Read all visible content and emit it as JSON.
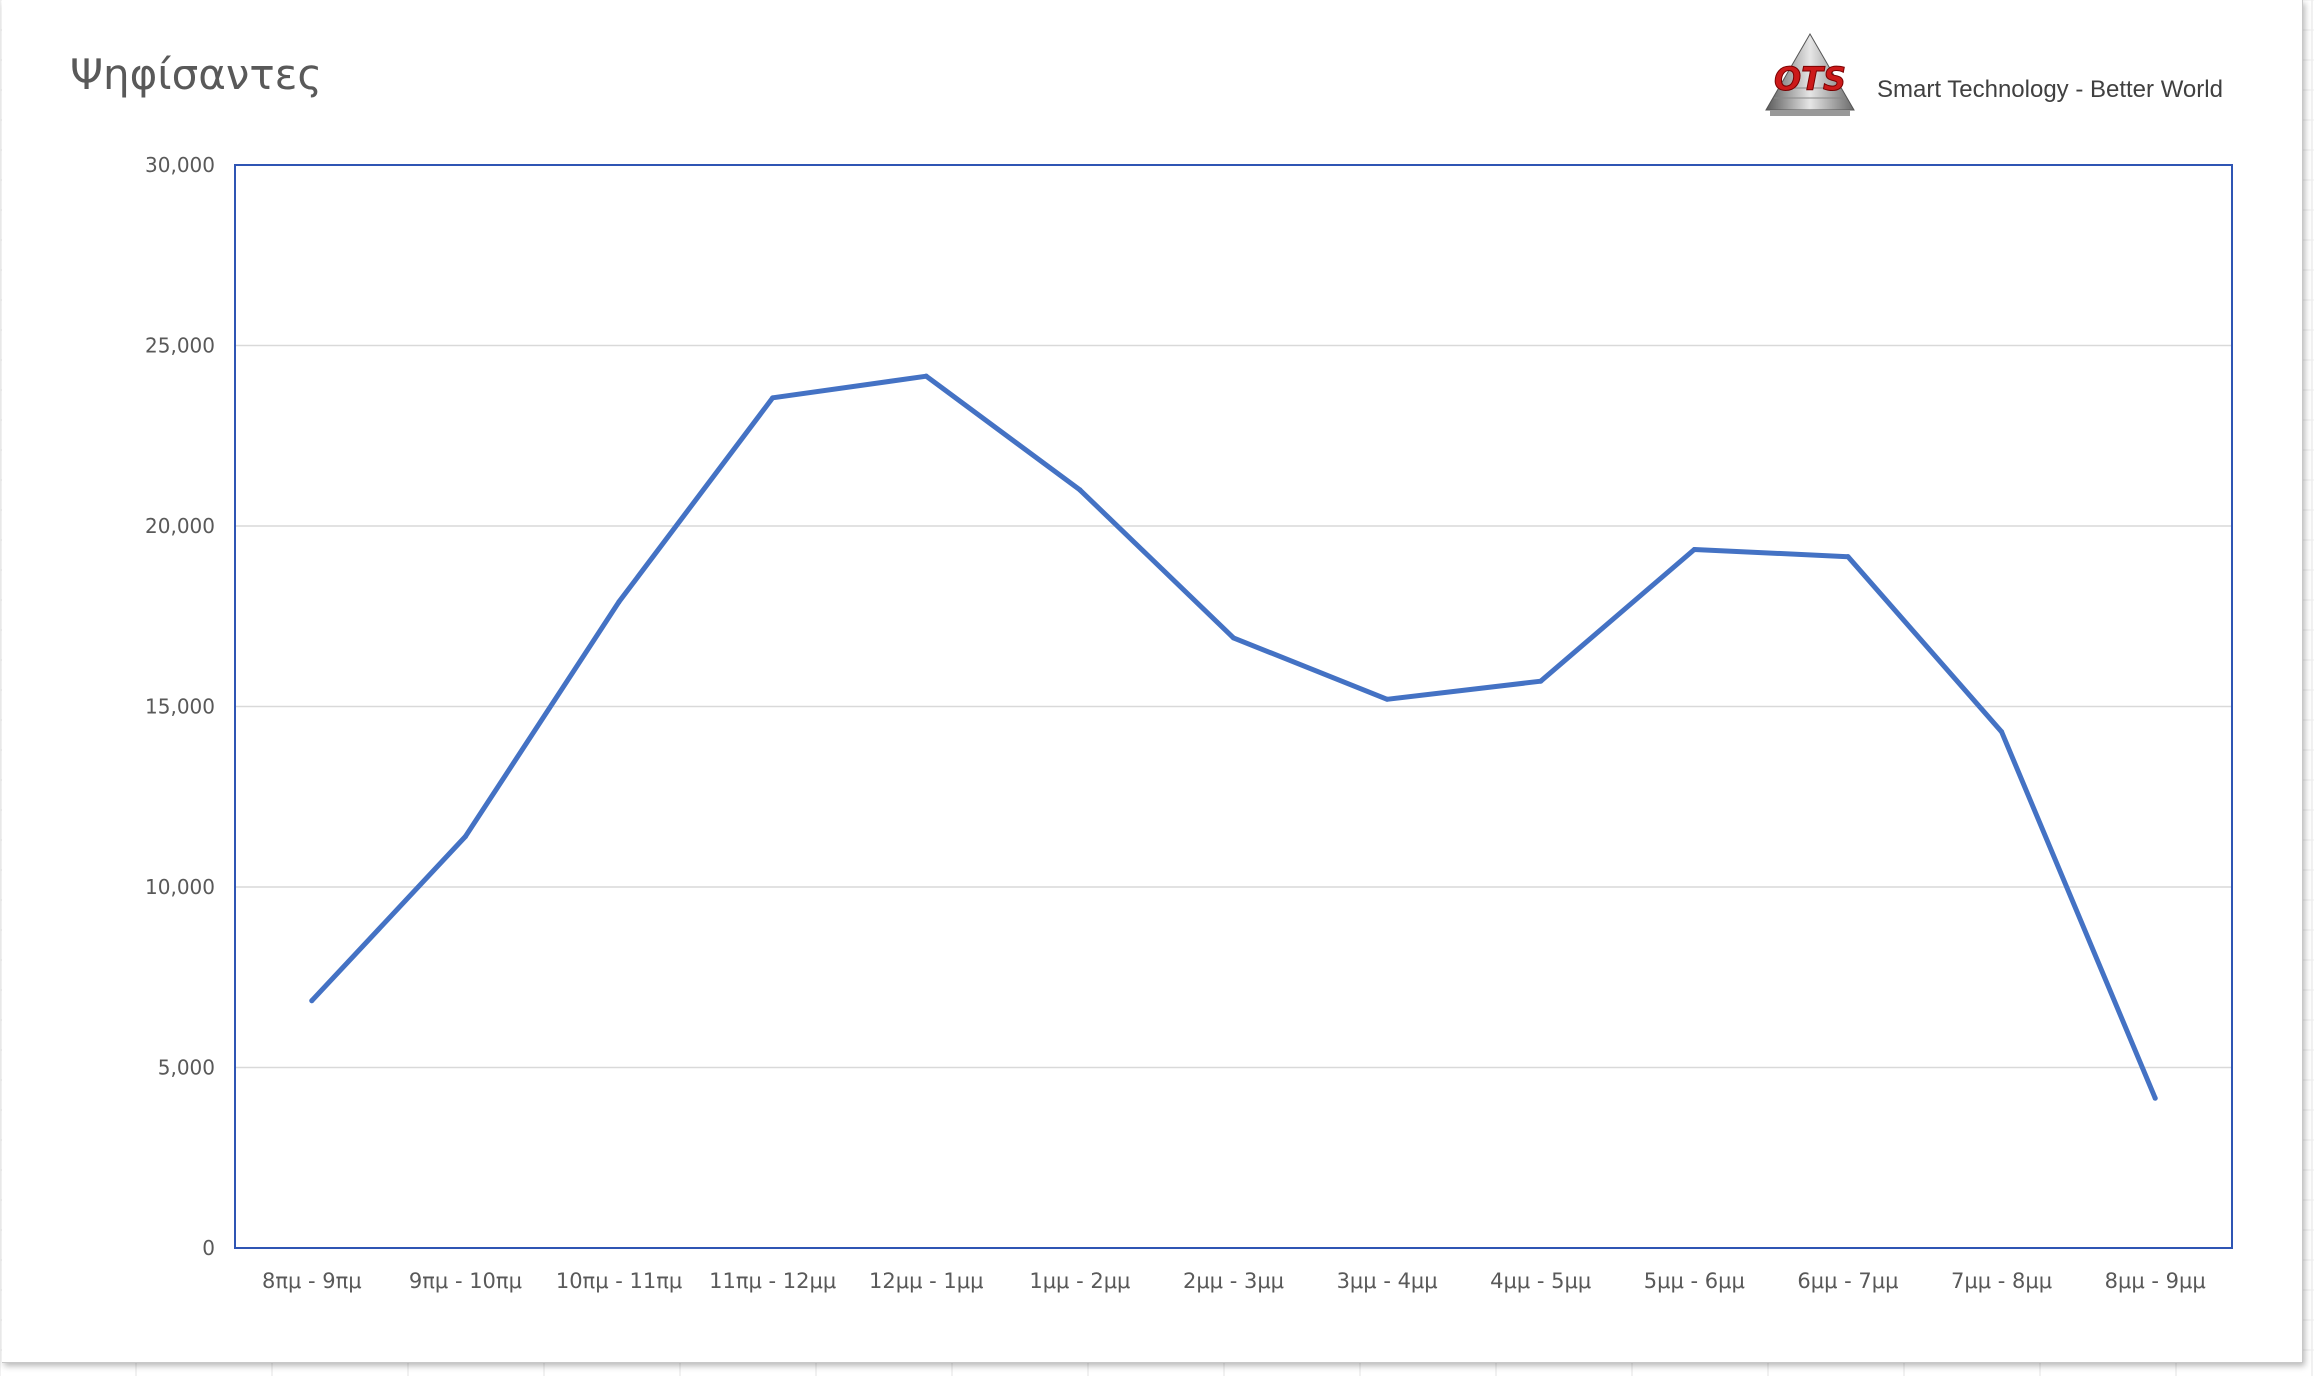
{
  "chart_data": {
    "type": "line",
    "title": "Ψηφίσαντες",
    "xlabel": "",
    "ylabel": "",
    "categories": [
      "8πμ - 9πμ",
      "9πμ - 10πμ",
      "10πμ - 11πμ",
      "11πμ - 12μμ",
      "12μμ - 1μμ",
      "1μμ - 2μμ",
      "2μμ - 3μμ",
      "3μμ - 4μμ",
      "4μμ - 5μμ",
      "5μμ - 6μμ",
      "6μμ - 7μμ",
      "7μμ - 8μμ",
      "8μμ - 9μμ"
    ],
    "series": [
      {
        "values": [
          6850,
          11400,
          17900,
          23550,
          24150,
          21000,
          16900,
          15200,
          15700,
          19350,
          19150,
          14300,
          4150
        ]
      }
    ],
    "ylim": [
      0,
      30000
    ],
    "yticks": [
      0,
      5000,
      10000,
      15000,
      20000,
      25000,
      30000
    ],
    "ytick_labels": [
      "0",
      "5,000",
      "10,000",
      "15,000",
      "20,000",
      "25,000",
      "30,000"
    ],
    "grid": true,
    "legend": "none",
    "line_color": "#4472c4",
    "axis_color": "#2f55b4",
    "gridline_color": "#d9d9d9"
  },
  "logo": {
    "text": "OTS",
    "tagline": "Smart Technology - Better World",
    "color": "#cc1a1a"
  }
}
